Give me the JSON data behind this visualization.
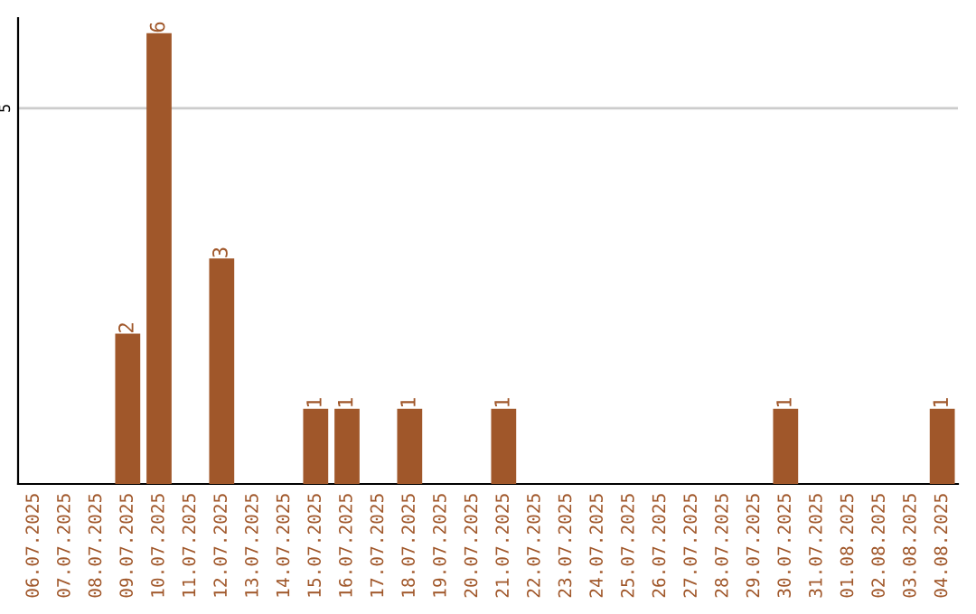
{
  "chart_data": {
    "type": "bar",
    "categories": [
      "06.07.2025",
      "07.07.2025",
      "08.07.2025",
      "09.07.2025",
      "10.07.2025",
      "11.07.2025",
      "12.07.2025",
      "13.07.2025",
      "14.07.2025",
      "15.07.2025",
      "16.07.2025",
      "17.07.2025",
      "18.07.2025",
      "19.07.2025",
      "20.07.2025",
      "21.07.2025",
      "22.07.2025",
      "23.07.2025",
      "24.07.2025",
      "25.07.2025",
      "26.07.2025",
      "27.07.2025",
      "28.07.2025",
      "29.07.2025",
      "30.07.2025",
      "31.07.2025",
      "01.08.2025",
      "02.08.2025",
      "03.08.2025",
      "04.08.2025"
    ],
    "values": [
      0,
      0,
      0,
      2,
      6,
      0,
      3,
      0,
      0,
      1,
      1,
      0,
      1,
      0,
      0,
      1,
      0,
      0,
      0,
      0,
      0,
      0,
      0,
      0,
      1,
      0,
      0,
      0,
      0,
      1
    ],
    "value_labels": [
      null,
      null,
      null,
      "2",
      "6",
      null,
      "3",
      null,
      null,
      "1",
      "1",
      null,
      "1",
      null,
      null,
      "1",
      null,
      null,
      null,
      null,
      null,
      null,
      null,
      null,
      "1",
      null,
      null,
      null,
      null,
      "1"
    ],
    "color": "#a0572a",
    "ylim": [
      0,
      6.2
    ],
    "yticks": [
      5
    ],
    "grid": "y"
  }
}
